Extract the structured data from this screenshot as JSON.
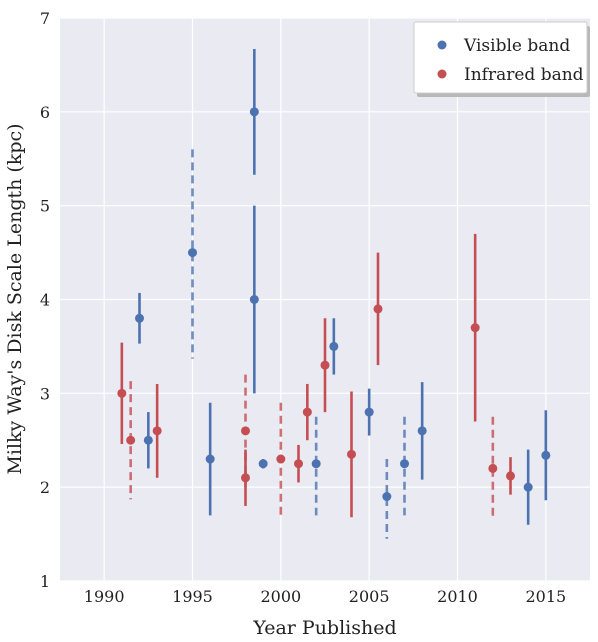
{
  "chart_data": {
    "type": "scatter",
    "xlabel": "Year Published",
    "ylabel": "Milky Way's Disk Scale Length (kpc)",
    "xlim": [
      1987.5,
      2017.5
    ],
    "ylim": [
      1,
      7
    ],
    "xticks": [
      1990,
      1995,
      2000,
      2005,
      2010,
      2015
    ],
    "yticks": [
      1,
      2,
      3,
      4,
      5,
      6,
      7
    ],
    "grid": true,
    "background": "#eaeaf2",
    "legend": "top-right",
    "series": [
      {
        "name": "Visible band",
        "color": "#4c72b0",
        "points": [
          {
            "x": 1992.0,
            "y": 3.8,
            "low": 3.53,
            "high": 4.07,
            "dashed": false
          },
          {
            "x": 1992.5,
            "y": 2.5,
            "low": 2.2,
            "high": 2.8,
            "dashed": false
          },
          {
            "x": 1995.0,
            "y": 4.5,
            "low": 3.37,
            "high": 5.6,
            "dashed": true
          },
          {
            "x": 1996.0,
            "y": 2.3,
            "low": 1.7,
            "high": 2.9,
            "dashed": false
          },
          {
            "x": 1998.5,
            "y": 6.0,
            "low": 5.33,
            "high": 6.67,
            "dashed": false
          },
          {
            "x": 1998.5,
            "y": 4.0,
            "low": 3.0,
            "high": 5.0,
            "dashed": false
          },
          {
            "x": 1999.0,
            "y": 2.25,
            "low": 2.2,
            "high": 2.3,
            "dashed": false
          },
          {
            "x": 2002.0,
            "y": 2.25,
            "low": 1.7,
            "high": 2.75,
            "dashed": true
          },
          {
            "x": 2003.0,
            "y": 3.5,
            "low": 3.2,
            "high": 3.8,
            "dashed": false
          },
          {
            "x": 2005.0,
            "y": 2.8,
            "low": 2.55,
            "high": 3.05,
            "dashed": false
          },
          {
            "x": 2006.0,
            "y": 1.9,
            "low": 1.45,
            "high": 2.3,
            "dashed": true
          },
          {
            "x": 2007.0,
            "y": 2.25,
            "low": 1.7,
            "high": 2.75,
            "dashed": true
          },
          {
            "x": 2008.0,
            "y": 2.6,
            "low": 2.08,
            "high": 3.12,
            "dashed": false
          },
          {
            "x": 2014.0,
            "y": 2.0,
            "low": 1.6,
            "high": 2.4,
            "dashed": false
          },
          {
            "x": 2015.0,
            "y": 2.34,
            "low": 1.86,
            "high": 2.82,
            "dashed": false
          }
        ]
      },
      {
        "name": "Infrared band",
        "color": "#c44e52",
        "points": [
          {
            "x": 1991.0,
            "y": 3.0,
            "low": 2.46,
            "high": 3.54,
            "dashed": false
          },
          {
            "x": 1991.5,
            "y": 2.5,
            "low": 1.87,
            "high": 3.13,
            "dashed": true
          },
          {
            "x": 1993.0,
            "y": 2.6,
            "low": 2.1,
            "high": 3.1,
            "dashed": false
          },
          {
            "x": 1998.0,
            "y": 2.6,
            "low": 2.0,
            "high": 3.2,
            "dashed": true
          },
          {
            "x": 1998.0,
            "y": 2.1,
            "low": 1.8,
            "high": 2.4,
            "dashed": false
          },
          {
            "x": 2000.0,
            "y": 2.3,
            "low": 1.7,
            "high": 2.9,
            "dashed": true
          },
          {
            "x": 2001.0,
            "y": 2.25,
            "low": 2.05,
            "high": 2.45,
            "dashed": false
          },
          {
            "x": 2001.5,
            "y": 2.8,
            "low": 2.5,
            "high": 3.1,
            "dashed": false
          },
          {
            "x": 2002.5,
            "y": 3.3,
            "low": 2.8,
            "high": 3.8,
            "dashed": false
          },
          {
            "x": 2004.0,
            "y": 2.35,
            "low": 1.68,
            "high": 3.02,
            "dashed": false
          },
          {
            "x": 2005.5,
            "y": 3.9,
            "low": 3.3,
            "high": 4.5,
            "dashed": false
          },
          {
            "x": 2011.0,
            "y": 3.7,
            "low": 2.7,
            "high": 4.7,
            "dashed": false
          },
          {
            "x": 2012.0,
            "y": 2.2,
            "low": 1.65,
            "high": 2.75,
            "dashed": true
          },
          {
            "x": 2013.0,
            "y": 2.12,
            "low": 1.92,
            "high": 2.32,
            "dashed": false
          }
        ]
      }
    ]
  }
}
